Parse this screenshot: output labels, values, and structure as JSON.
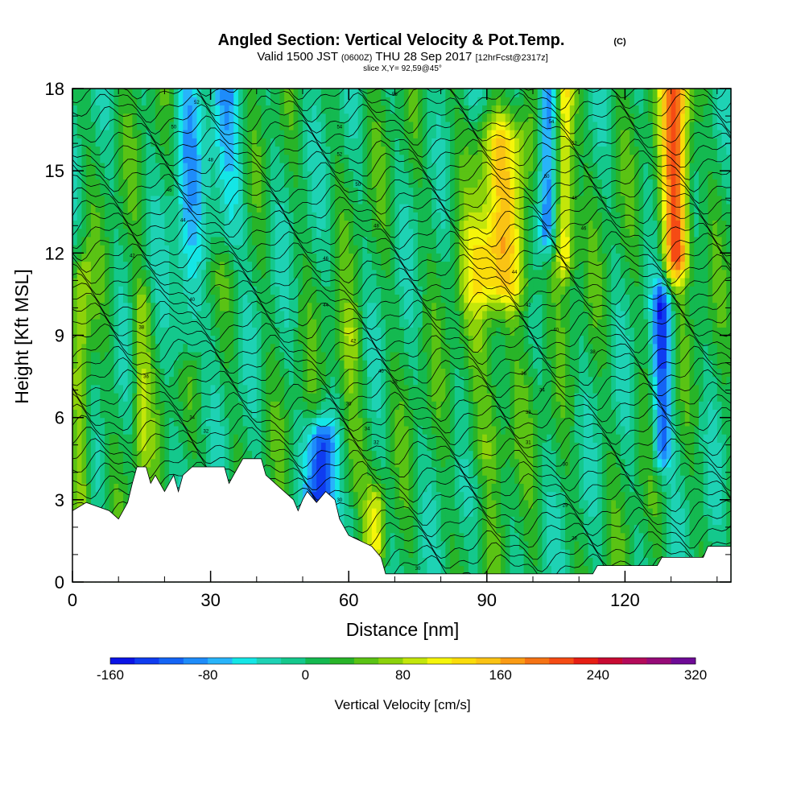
{
  "chart_data": {
    "type": "heatmap",
    "title": "Angled Section: Vertical Velocity & Pot.Temp.",
    "title_tag": "(C)",
    "subtitle_valid": "Valid 1500 JST",
    "subtitle_utc": "(0600Z)",
    "subtitle_date": "THU 28 Sep 2017",
    "subtitle_fcst": "[12hrFcst@2317z]",
    "subtitle_slice": "slice X,Y= 92,59@45°",
    "xlabel": "Distance [nm]",
    "ylabel": "Height [Kft MSL]",
    "xlim": [
      0,
      143
    ],
    "ylim": [
      0,
      18
    ],
    "x_ticks": [
      0,
      30,
      60,
      90,
      120
    ],
    "y_ticks": [
      0,
      3,
      6,
      9,
      12,
      15,
      18
    ],
    "colorbar": {
      "label": "Vertical Velocity [cm/s]",
      "min": -160,
      "max": 320,
      "step": 20,
      "tick_labels": [
        "-160",
        "-80",
        "0",
        "80",
        "160",
        "240",
        "320"
      ],
      "colors": [
        "#0a14e6",
        "#0f3cf0",
        "#1464f5",
        "#1e8cfa",
        "#28b4fa",
        "#14e6e6",
        "#1ed2b4",
        "#14c88c",
        "#14b950",
        "#28b428",
        "#5ac314",
        "#8cd20a",
        "#c3e60a",
        "#f5f50a",
        "#fadc0a",
        "#fac314",
        "#fa9b14",
        "#f57314",
        "#f54b14",
        "#e61e14",
        "#c80a32",
        "#b40a5a",
        "#960a78",
        "#6e0a96"
      ]
    },
    "terrain_profile": [
      [
        0,
        2.6
      ],
      [
        3,
        2.9
      ],
      [
        8,
        2.6
      ],
      [
        10,
        2.3
      ],
      [
        12,
        2.9
      ],
      [
        13,
        3.6
      ],
      [
        14,
        4.2
      ],
      [
        16,
        4.2
      ],
      [
        17,
        3.6
      ],
      [
        18,
        3.9
      ],
      [
        19,
        3.6
      ],
      [
        20,
        3.3
      ],
      [
        21,
        3.6
      ],
      [
        22,
        3.9
      ],
      [
        23,
        3.3
      ],
      [
        24,
        3.9
      ],
      [
        26,
        4.2
      ],
      [
        33,
        4.2
      ],
      [
        34,
        3.6
      ],
      [
        35,
        3.9
      ],
      [
        37,
        4.5
      ],
      [
        41,
        4.5
      ],
      [
        42,
        3.9
      ],
      [
        44,
        3.6
      ],
      [
        46,
        3.3
      ],
      [
        48,
        3.0
      ],
      [
        49,
        2.6
      ],
      [
        50,
        3.0
      ],
      [
        51,
        3.3
      ],
      [
        53,
        2.9
      ],
      [
        55,
        3.3
      ],
      [
        57,
        3.0
      ],
      [
        58,
        2.3
      ],
      [
        60,
        1.7
      ],
      [
        65,
        1.3
      ],
      [
        67,
        0.9
      ],
      [
        68,
        0.3
      ],
      [
        113,
        0.3
      ],
      [
        114,
        0.6
      ],
      [
        127,
        0.6
      ],
      [
        128,
        0.9
      ],
      [
        137,
        0.9
      ],
      [
        138,
        1.3
      ],
      [
        143,
        1.3
      ]
    ],
    "velocity_features": [
      {
        "x": 2,
        "z0": 3,
        "z1": 11,
        "width": 2,
        "value": 70
      },
      {
        "x": 15,
        "z0": 5,
        "z1": 10,
        "width": 2,
        "value": 60
      },
      {
        "x": 25,
        "z0": 9,
        "z1": 17.5,
        "width": 3,
        "value": -60
      },
      {
        "x": 33,
        "z0": 13,
        "z1": 18,
        "width": 4,
        "value": -60
      },
      {
        "x": 54,
        "z0": 3,
        "z1": 5,
        "width": 3,
        "value": -150
      },
      {
        "x": 60,
        "z0": 4,
        "z1": 9,
        "width": 3,
        "value": 50
      },
      {
        "x": 66,
        "z0": 1.5,
        "z1": 2.5,
        "width": 2,
        "value": 80
      },
      {
        "x": 93,
        "z0": 11,
        "z1": 16,
        "width": 7,
        "value": 100
      },
      {
        "x": 91,
        "z0": 5,
        "z1": 12,
        "width": 6,
        "value": 45
      },
      {
        "x": 103,
        "z0": 13,
        "z1": 18,
        "width": 2,
        "value": -120
      },
      {
        "x": 107,
        "z0": 12,
        "z1": 18,
        "width": 2,
        "value": 130
      },
      {
        "x": 131,
        "z0": 12,
        "z1": 18,
        "width": 3,
        "value": 200
      },
      {
        "x": 128,
        "z0": 5,
        "z1": 10,
        "width": 2,
        "value": -120
      }
    ],
    "theta_contour_labels": [
      {
        "x": 27,
        "z": 17.5,
        "text": "52"
      },
      {
        "x": 22,
        "z": 16.6,
        "text": "50"
      },
      {
        "x": 30,
        "z": 15.4,
        "text": "48"
      },
      {
        "x": 21,
        "z": 14.3,
        "text": "46"
      },
      {
        "x": 24,
        "z": 13.2,
        "text": "44"
      },
      {
        "x": 13,
        "z": 11.9,
        "text": "42"
      },
      {
        "x": 26,
        "z": 10.3,
        "text": "40"
      },
      {
        "x": 15,
        "z": 9.3,
        "text": "38"
      },
      {
        "x": 16,
        "z": 7.5,
        "text": "36"
      },
      {
        "x": 26,
        "z": 6.0,
        "text": "34"
      },
      {
        "x": 29,
        "z": 5.5,
        "text": "32"
      },
      {
        "x": 70,
        "z": 17.8,
        "text": "56"
      },
      {
        "x": 58,
        "z": 16.6,
        "text": "54"
      },
      {
        "x": 58,
        "z": 15.6,
        "text": "52"
      },
      {
        "x": 62,
        "z": 14.5,
        "text": "50"
      },
      {
        "x": 66,
        "z": 13.0,
        "text": "48"
      },
      {
        "x": 55,
        "z": 11.8,
        "text": "46"
      },
      {
        "x": 55,
        "z": 10.1,
        "text": "44"
      },
      {
        "x": 61,
        "z": 8.8,
        "text": "42"
      },
      {
        "x": 67,
        "z": 7.7,
        "text": "40"
      },
      {
        "x": 70,
        "z": 7.3,
        "text": "38"
      },
      {
        "x": 60,
        "z": 6.5,
        "text": "36"
      },
      {
        "x": 64,
        "z": 5.6,
        "text": "34"
      },
      {
        "x": 66,
        "z": 5.1,
        "text": "32"
      },
      {
        "x": 58,
        "z": 3.0,
        "text": "30"
      },
      {
        "x": 75,
        "z": 0.5,
        "text": "30"
      },
      {
        "x": 104,
        "z": 16.8,
        "text": "54"
      },
      {
        "x": 109,
        "z": 16.0,
        "text": "52"
      },
      {
        "x": 103,
        "z": 14.8,
        "text": "50"
      },
      {
        "x": 109,
        "z": 14.0,
        "text": "48"
      },
      {
        "x": 111,
        "z": 12.9,
        "text": "46"
      },
      {
        "x": 96,
        "z": 11.3,
        "text": "44"
      },
      {
        "x": 99,
        "z": 10.1,
        "text": "42"
      },
      {
        "x": 105,
        "z": 9.2,
        "text": "40"
      },
      {
        "x": 113,
        "z": 8.4,
        "text": "38"
      },
      {
        "x": 98,
        "z": 7.6,
        "text": "36"
      },
      {
        "x": 102,
        "z": 7.0,
        "text": "34"
      },
      {
        "x": 99,
        "z": 6.2,
        "text": "33"
      },
      {
        "x": 99,
        "z": 5.1,
        "text": "31"
      },
      {
        "x": 107,
        "z": 4.3,
        "text": "30"
      },
      {
        "x": 107,
        "z": 2.8,
        "text": "29"
      },
      {
        "x": 109,
        "z": 1.6,
        "text": "28"
      }
    ]
  }
}
